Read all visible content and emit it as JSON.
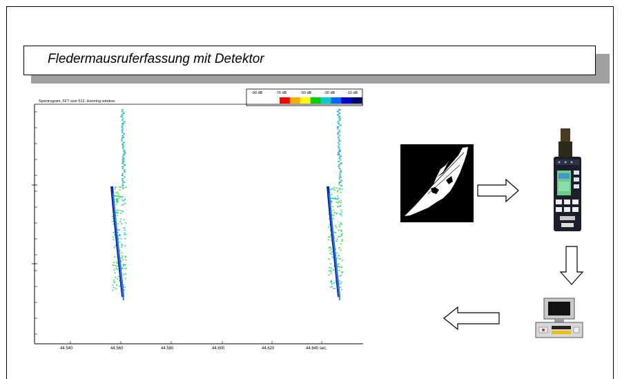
{
  "slide": {
    "title": "Fledermausruferfassung mit Detektor"
  },
  "spectrogram": {
    "title": "Spectrogram, FFT size 512, Hanning window.",
    "colorbar_labels": [
      "-90 dB",
      "-70 dB",
      "-50 dB",
      "-30 dB",
      "-10 dB"
    ],
    "colorbar_colors": [
      "#ff0000",
      "#ffaa00",
      "#ffff00",
      "#00cc00",
      "#00cccc",
      "#0066ff",
      "#0000cc",
      "#000066"
    ],
    "x_ticks": [
      "44.540",
      "44.560",
      "44.580",
      "44.600",
      "44.620",
      "44.640 sec."
    ]
  },
  "flow": {
    "source": "bat-photo",
    "device": "bat-detector",
    "target": "computer",
    "arrows": [
      "right",
      "down",
      "left"
    ]
  }
}
